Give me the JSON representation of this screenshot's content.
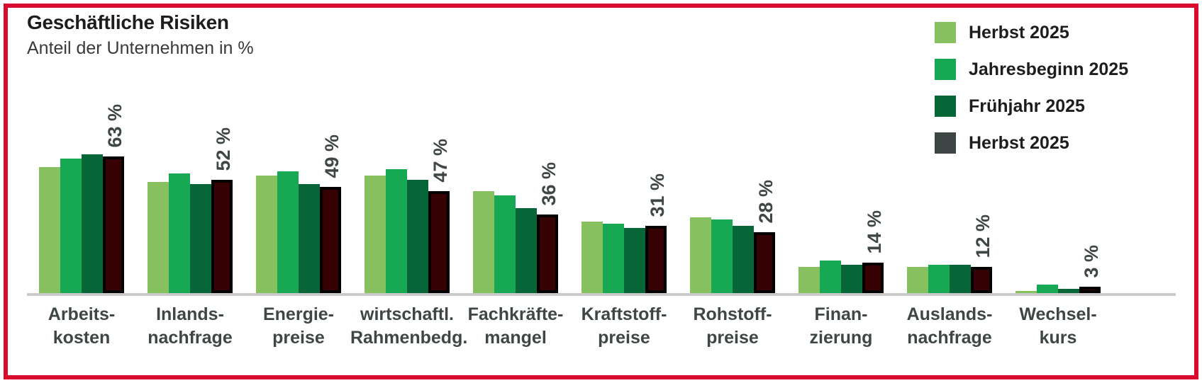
{
  "title": "Geschäftliche Risiken",
  "subtitle": "Anteil der Unternehmen in %",
  "legend": {
    "items": [
      {
        "label": "Herbst 2025",
        "color": "#87c15f"
      },
      {
        "label": "Jahresbeginn 2025",
        "color": "#17a853"
      },
      {
        "label": "Frühjahr 2025",
        "color": "#066638"
      },
      {
        "label": "Herbst 2025",
        "color": "#3c4543"
      }
    ]
  },
  "colors": {
    "frame": "#da0c2d",
    "axis_line": "#c9c9c9",
    "label_text": "#3f4743",
    "bar4_fill": "#360102",
    "bar4_border": "#000000"
  },
  "chart_data": {
    "type": "bar",
    "title": "Geschäftliche Risiken",
    "ylabel": "Anteil der Unternehmen in %",
    "ylim": [
      0,
      70
    ],
    "grid": false,
    "legend_position": "top-right",
    "categories": [
      [
        "Arbeits-",
        "kosten"
      ],
      [
        "Inlands-",
        "nachfrage"
      ],
      [
        "Energie-",
        "preise"
      ],
      [
        "wirtschaftl.",
        "Rahmenbedg."
      ],
      [
        "Fachkräfte-",
        "mangel"
      ],
      [
        "Kraftstoff-",
        "preise"
      ],
      [
        "Rohstoff-",
        "preise"
      ],
      [
        "Finan-",
        "zierung"
      ],
      [
        "Auslands-",
        "nachfrage"
      ],
      [
        "Wechsel-",
        "kurs"
      ]
    ],
    "series": [
      {
        "name": "Herbst 2025",
        "color": "#87c15f",
        "values": [
          58,
          51,
          54,
          54,
          47,
          33,
          35,
          12,
          12,
          1
        ]
      },
      {
        "name": "Jahresbeginn 2025",
        "color": "#17a853",
        "values": [
          62,
          55,
          56,
          57,
          45,
          32,
          34,
          15,
          13,
          4
        ]
      },
      {
        "name": "Frühjahr 2025",
        "color": "#066638",
        "values": [
          64,
          50,
          50,
          52,
          39,
          30,
          31,
          13,
          13,
          2
        ]
      },
      {
        "name": "Herbst 2025",
        "color": "#360102",
        "border_color": "#000000",
        "values": [
          63,
          52,
          49,
          47,
          36,
          31,
          28,
          14,
          12,
          3
        ]
      }
    ],
    "value_labels": [
      "63 %",
      "52 %",
      "49 %",
      "47 %",
      "36 %",
      "31 %",
      "28 %",
      "14 %",
      "12 %",
      "3 %"
    ],
    "value_labels_refer_to_series": "Herbst 2025 (4th, dark)"
  }
}
